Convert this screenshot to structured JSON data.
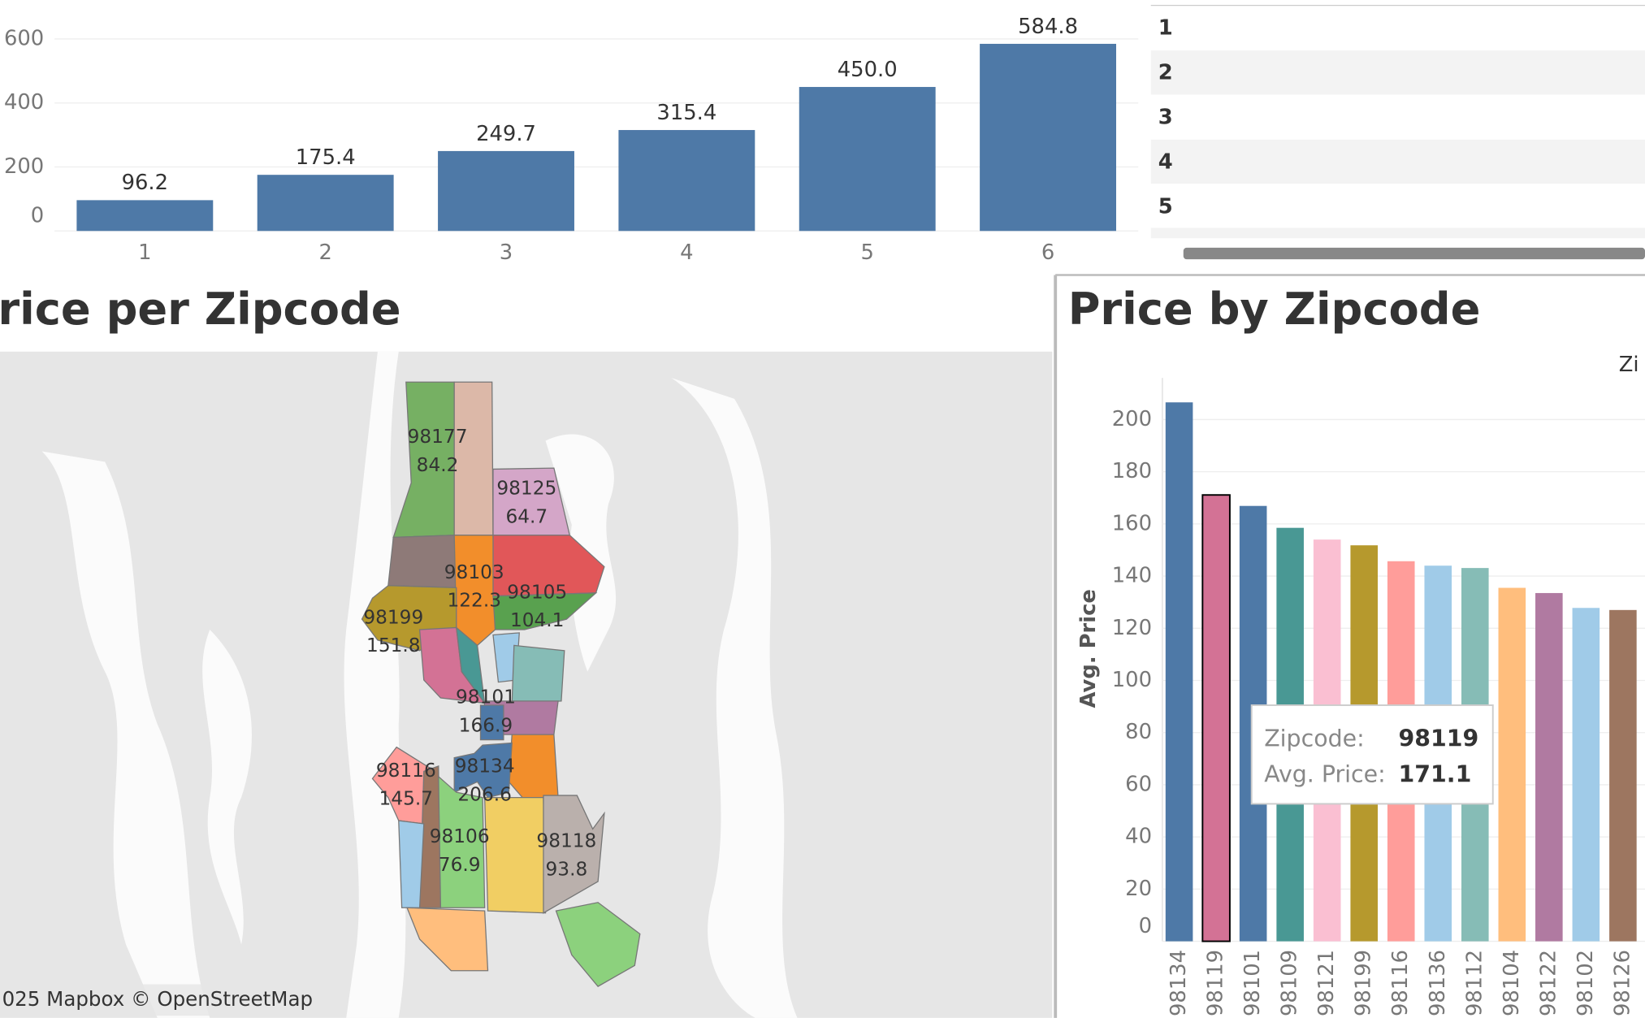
{
  "chart_data": [
    {
      "type": "bar",
      "categories": [
        "1",
        "2",
        "3",
        "4",
        "5",
        "6"
      ],
      "values": [
        96.2,
        175.4,
        249.7,
        315.4,
        450.0,
        584.8
      ],
      "value_labels": [
        "96.2",
        "175.4",
        "249.7",
        "315.4",
        "450.0",
        "584.8"
      ],
      "color": "#4e79a7",
      "ylim": [
        0,
        705
      ],
      "yticks": [
        0,
        200,
        400,
        600
      ],
      "grid": true
    },
    {
      "type": "map",
      "title": "rice per Zipcode",
      "attribution": "025 Mapbox © OpenStreetMap",
      "regions": [
        {
          "zipcode": "98177",
          "value": 84.2
        },
        {
          "zipcode": "98125",
          "value": 64.7
        },
        {
          "zipcode": "98103",
          "value": 122.3
        },
        {
          "zipcode": "98105",
          "value": 104.1
        },
        {
          "zipcode": "98199",
          "value": 151.8
        },
        {
          "zipcode": "98101",
          "value": 166.9
        },
        {
          "zipcode": "98116",
          "value": 145.7
        },
        {
          "zipcode": "98134",
          "value": 206.6
        },
        {
          "zipcode": "98106",
          "value": 76.9
        },
        {
          "zipcode": "98118",
          "value": 93.8
        }
      ]
    },
    {
      "type": "bar",
      "title": "Price by Zipcode",
      "legend_title": "Zi",
      "y_label": "Avg. Price",
      "categories": [
        "98134",
        "98119",
        "98101",
        "98109",
        "98121",
        "98199",
        "98116",
        "98136",
        "98112",
        "98104",
        "98122",
        "98102",
        "98126"
      ],
      "values": [
        206.6,
        171.1,
        166.9,
        158.5,
        154.0,
        151.8,
        145.7,
        144.0,
        143.1,
        135.5,
        133.5,
        127.8,
        127.0
      ],
      "colors": [
        "#4e79a7",
        "#d37295",
        "#4e79a7",
        "#499894",
        "#fabfd2",
        "#b6992d",
        "#ff9d9a",
        "#a0cbe8",
        "#86bcb6",
        "#ffbe7d",
        "#b07aa1",
        "#a0cbe8",
        "#9d7660"
      ],
      "highlight": "98119",
      "ylim": [
        0,
        216
      ],
      "yticks": [
        0,
        20,
        40,
        60,
        80,
        100,
        120,
        140,
        160,
        180,
        200
      ],
      "grid": true,
      "tooltip": {
        "zipcode_label": "Zipcode:",
        "zipcode": "98119",
        "price_label": "Avg. Price:",
        "price": 171.1
      }
    }
  ],
  "table": {
    "rows": [
      "1",
      "2",
      "3",
      "4",
      "5"
    ]
  }
}
